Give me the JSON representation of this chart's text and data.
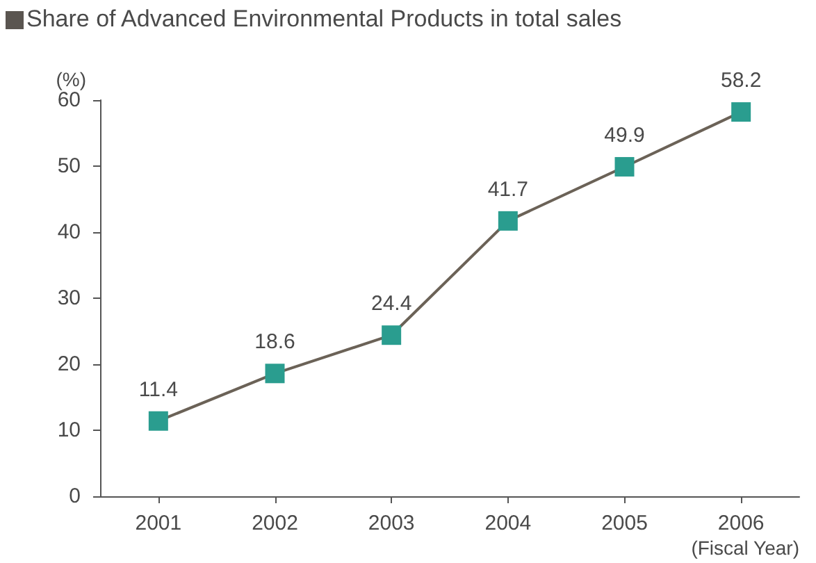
{
  "chart_data": {
    "type": "line",
    "title": "Share of Advanced Environmental Products in total sales",
    "ylabel": "(%)",
    "xlabel": "(Fiscal Year)",
    "categories": [
      "2001",
      "2002",
      "2003",
      "2004",
      "2005",
      "2006"
    ],
    "series": [
      {
        "color": "#2a9d8f",
        "values": [
          11.4,
          18.6,
          24.4,
          41.7,
          49.9,
          58.2
        ]
      }
    ],
    "ylim": [
      0,
      60
    ],
    "yticks": [
      0,
      10,
      20,
      30,
      40,
      50,
      60
    ],
    "grid": false,
    "marker": "square",
    "line_style": "solid",
    "data_labels": true
  }
}
